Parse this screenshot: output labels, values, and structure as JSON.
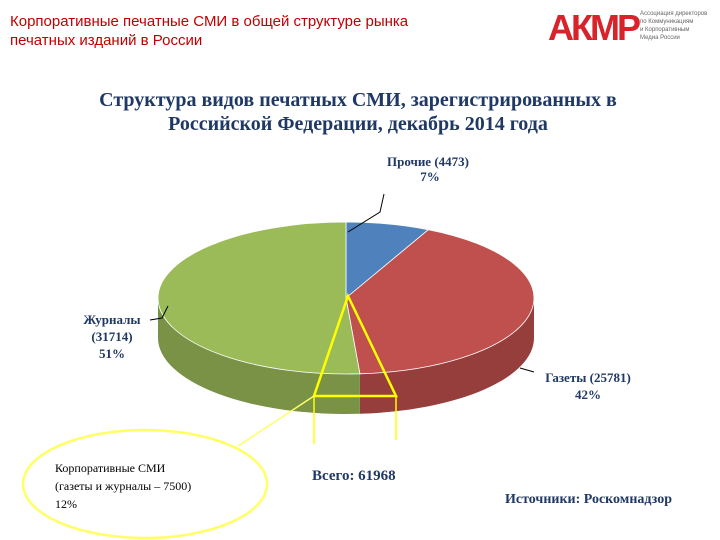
{
  "slide": {
    "title_line1": "Корпоративные печатные СМИ в общей структуре рынка",
    "title_line2": "печатных изданий в России",
    "logo_text": "АКМР",
    "logo_caption": [
      "Ассоциация директоров",
      "по Коммуникациям",
      "и Корпоративным",
      "Медиа России"
    ]
  },
  "chart_data": {
    "type": "pie",
    "title_line1": "Структура видов печатных СМИ, зарегистрированных в",
    "title_line2": "Российской Федерации, декабрь 2014 года",
    "slices": [
      {
        "name": "Прочие",
        "value": 4473,
        "percent": 7,
        "label_line1": "Прочие (4473)",
        "label_line2": "7%",
        "color": "#4f81bd"
      },
      {
        "name": "Газеты",
        "value": 25781,
        "percent": 42,
        "label_line1": "Газеты (25781)",
        "label_line2": "42%",
        "color": "#c0504d"
      },
      {
        "name": "Журналы",
        "value": 31714,
        "percent": 51,
        "label_line1": "Журналы",
        "label_line2": "(31714)",
        "label_line3": "51%",
        "color": "#9bbb59"
      }
    ],
    "total_label": "Всего: 61968",
    "source_label": "Источники: Роскомнадзор",
    "annotation": {
      "line1": "Корпоративные СМИ",
      "line2": "(газеты и журналы – 7500)",
      "line3": "12%",
      "color": "#ffff66"
    }
  }
}
